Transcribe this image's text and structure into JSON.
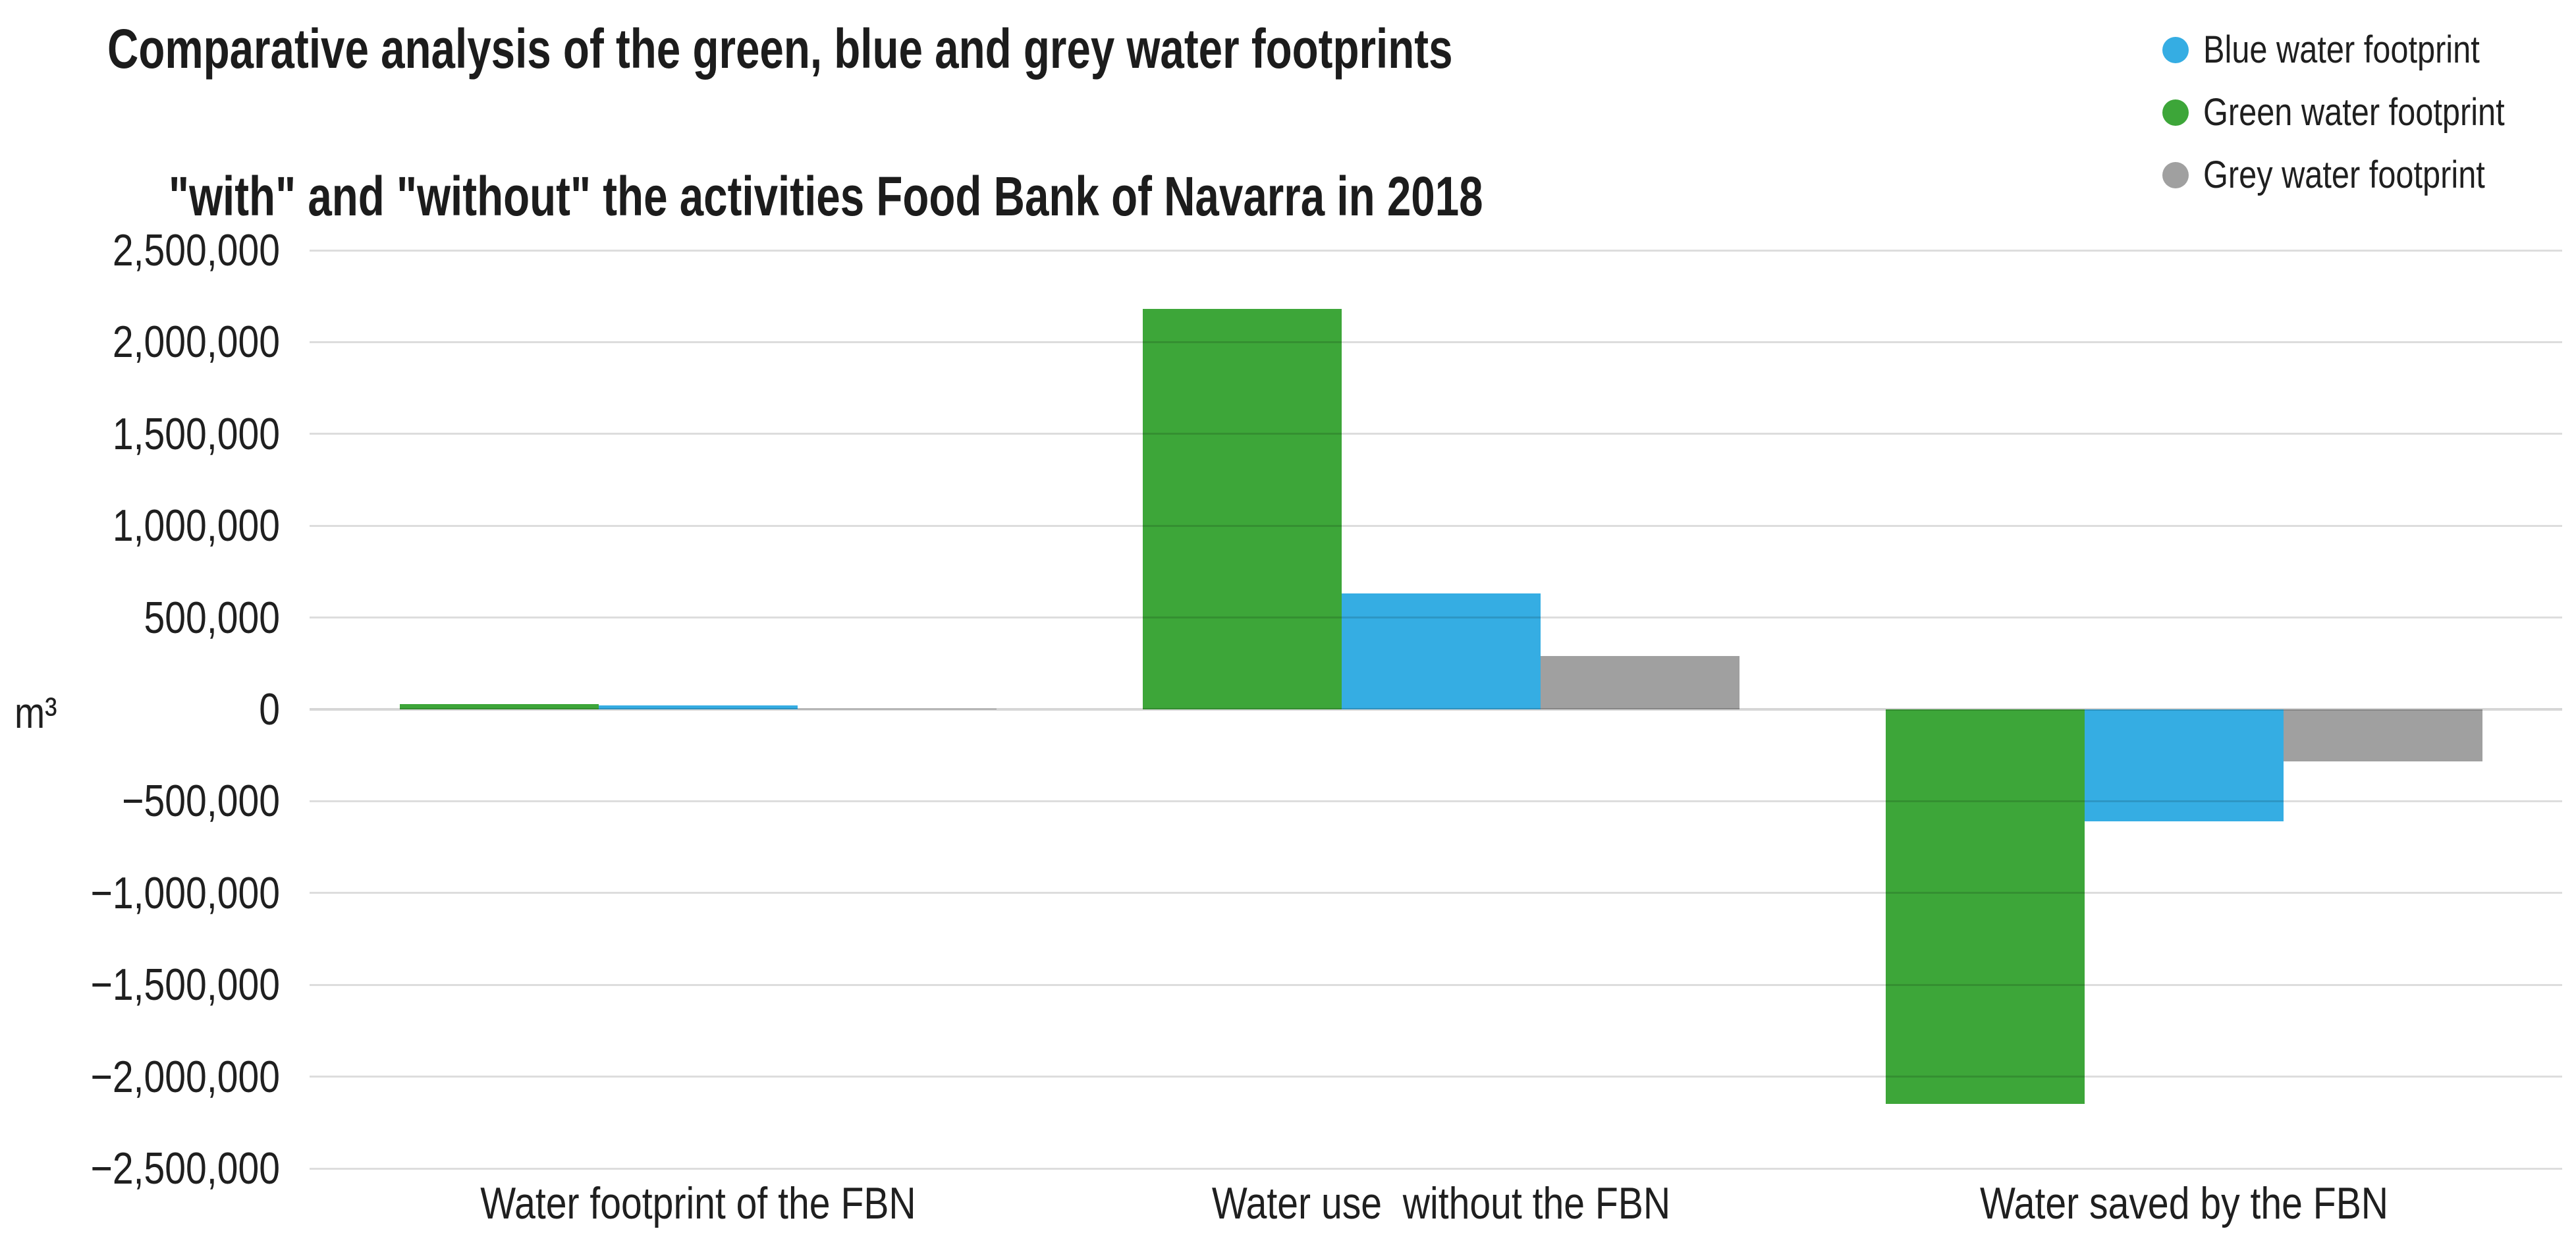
{
  "title": {
    "line1": "Comparative analysis of the green, blue and grey water footprints",
    "line2": "\"with\" and \"without\" the activities Food Bank of Navarra in 2018"
  },
  "legend": {
    "items": [
      {
        "label": "Blue water footprint",
        "color": "#35ADE3"
      },
      {
        "label": "Green water footprint",
        "color": "#3DA639"
      },
      {
        "label": "Grey water footprint",
        "color": "#A0A0A0"
      }
    ]
  },
  "y_axis": {
    "unit_label": "m³",
    "tick_labels": [
      "2,500,000",
      "2,000,000",
      "1,500,000",
      "1,000,000",
      "500,000",
      "0",
      "−500,000",
      "−1,000,000",
      "−1,500,000",
      "−2,000,000",
      "−2,500,000"
    ]
  },
  "x_axis": {
    "category_labels": [
      "Water footprint of the FBN",
      "Water use  without the FBN",
      "Water saved by the FBN"
    ]
  },
  "chart_data": {
    "type": "bar",
    "title": "Comparative analysis of the green, blue and grey water footprints \"with\" and \"without\" the activities Food Bank of Navarra in 2018",
    "ylabel": "m³",
    "xlabel": "",
    "categories": [
      "Water footprint of the FBN",
      "Water use  without the FBN",
      "Water saved by the FBN"
    ],
    "series": [
      {
        "name": "Green water footprint",
        "color": "#3DA639",
        "values": [
          30000,
          2180000,
          -2150000
        ]
      },
      {
        "name": "Blue water footprint",
        "color": "#35ADE3",
        "values": [
          20000,
          630000,
          -610000
        ]
      },
      {
        "name": "Grey water footprint",
        "color": "#A0A0A0",
        "values": [
          5000,
          290000,
          -285000
        ]
      }
    ],
    "ylim": [
      -2500000,
      2500000
    ],
    "ytick_step": 500000,
    "grid": true,
    "gridlines_over_bars": true,
    "legend_position": "top-right",
    "legend_order": [
      "Blue water footprint",
      "Green water footprint",
      "Grey water footprint"
    ]
  }
}
